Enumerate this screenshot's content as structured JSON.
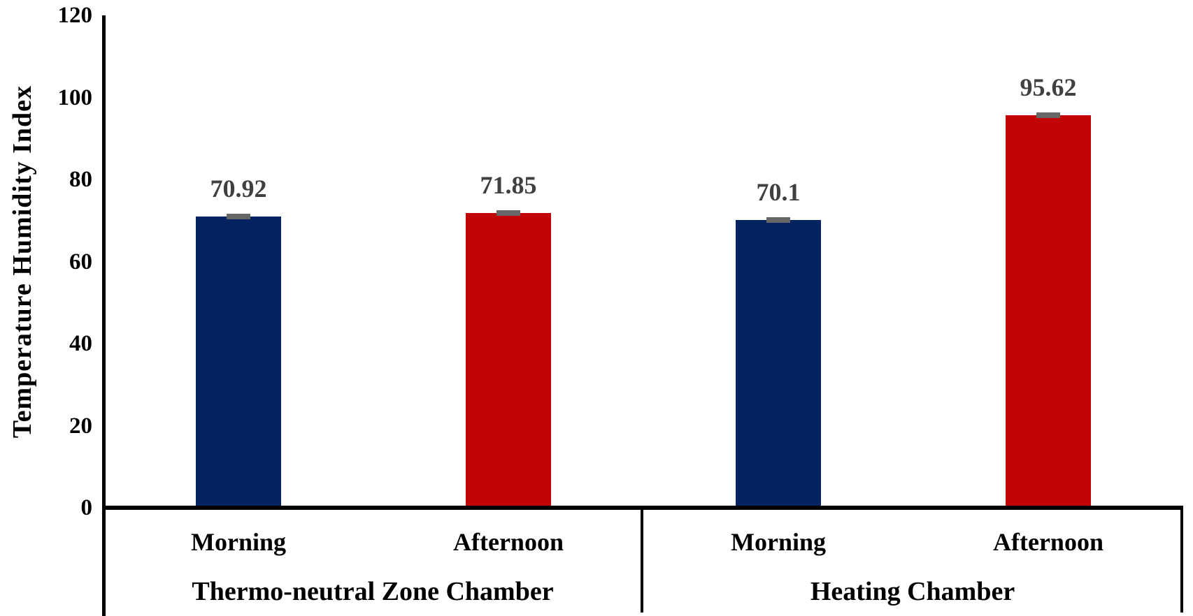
{
  "chart_data": {
    "type": "bar",
    "title": "",
    "ylabel": "Temperature Humidity Index",
    "xlabel": "",
    "ylim": [
      0,
      120
    ],
    "yticks": [
      0,
      20,
      40,
      60,
      80,
      100,
      120
    ],
    "grid": false,
    "legend_position": "none",
    "has_error_caps": true,
    "groups": [
      {
        "label": "Thermo-neutral Zone Chamber",
        "categories": [
          "Morning",
          "Afternoon"
        ],
        "values": [
          70.92,
          71.85
        ],
        "value_labels": [
          "70.92",
          "71.85"
        ]
      },
      {
        "label": "Heating Chamber",
        "categories": [
          "Morning",
          "Afternoon"
        ],
        "values": [
          70.1,
          95.62
        ],
        "value_labels": [
          "70.1",
          "95.62"
        ]
      }
    ],
    "colors": {
      "morning_bar": "#052361",
      "afternoon_bar": "#c10505",
      "error_bar_cap": "#666666",
      "value_label": "#404040",
      "axis_and_text": "#000000"
    }
  }
}
